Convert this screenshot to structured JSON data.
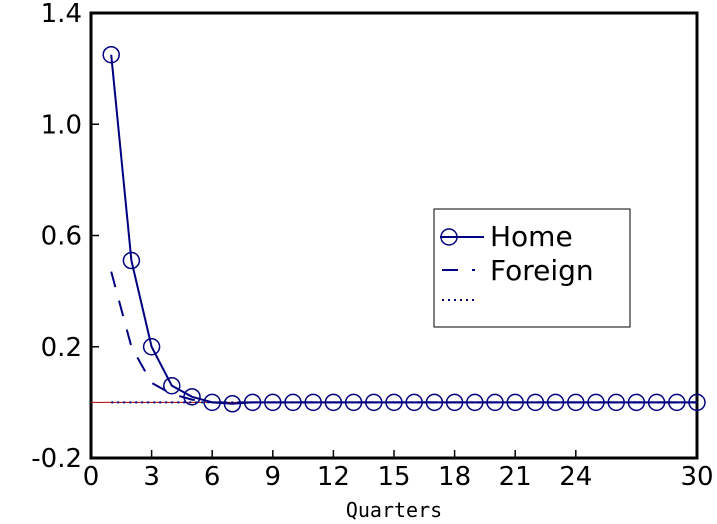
{
  "chart_data": {
    "type": "line",
    "xlabel": "Quarters",
    "ylabel": "",
    "xlim": [
      0,
      30
    ],
    "ylim": [
      -0.2,
      1.4
    ],
    "x_ticks": [
      0,
      3,
      6,
      9,
      12,
      15,
      18,
      21,
      24,
      30
    ],
    "y_ticks": [
      -0.2,
      0.2,
      0.6,
      1.0,
      1.4
    ],
    "y_tick_labels": [
      "-0.2",
      "0.2",
      "0.6",
      "1.0",
      "1.4"
    ],
    "grid": false,
    "legend_position": "center-right",
    "zero_line": true,
    "series": [
      {
        "name": "Home",
        "style": "solid-circles",
        "color": "#000080",
        "x": [
          1,
          2,
          3,
          4,
          5,
          6,
          7,
          8,
          9,
          10,
          11,
          12,
          13,
          14,
          15,
          16,
          17,
          18,
          19,
          20,
          21,
          22,
          23,
          24,
          25,
          26,
          27,
          28,
          29,
          30
        ],
        "values": [
          1.25,
          0.51,
          0.2,
          0.06,
          0.02,
          0.0,
          -0.005,
          0.0,
          0.0,
          0.0,
          0.0,
          0.0,
          0.0,
          0.0,
          0.0,
          0.0,
          0.0,
          0.0,
          0.0,
          0.0,
          0.0,
          0.0,
          0.0,
          0.0,
          0.0,
          0.0,
          0.0,
          0.0,
          0.0,
          0.0
        ]
      },
      {
        "name": "Foreign",
        "style": "dashed",
        "color": "#000080",
        "x": [
          1,
          2,
          3,
          4,
          5,
          6,
          7,
          8,
          9,
          10,
          11,
          12,
          13,
          14,
          15,
          16,
          17,
          18,
          19,
          20,
          21,
          22,
          23,
          24,
          25,
          26,
          27,
          28,
          29,
          30
        ],
        "values": [
          0.47,
          0.2,
          0.07,
          0.03,
          0.01,
          0.0,
          0.0,
          0.0,
          0.0,
          0.0,
          0.0,
          0.0,
          0.0,
          0.0,
          0.0,
          0.0,
          0.0,
          0.0,
          0.0,
          0.0,
          0.0,
          0.0,
          0.0,
          0.0,
          0.0,
          0.0,
          0.0,
          0.0,
          0.0,
          0.0
        ]
      },
      {
        "name": "",
        "style": "dotted",
        "color": "#000080",
        "x": [
          1,
          2,
          3,
          4,
          5,
          6,
          7,
          8,
          9,
          10,
          11,
          12,
          13,
          14,
          15,
          16,
          17,
          18,
          19,
          20,
          21,
          22,
          23,
          24,
          25,
          26,
          27,
          28,
          29,
          30
        ],
        "values": [
          0.0,
          0.0,
          0.0,
          0.0,
          0.0,
          0.0,
          0.0,
          0.0,
          0.0,
          0.0,
          0.0,
          0.0,
          0.0,
          0.0,
          0.0,
          0.0,
          0.0,
          0.0,
          0.0,
          0.0,
          0.0,
          0.0,
          0.0,
          0.0,
          0.0,
          0.0,
          0.0,
          0.0,
          0.0,
          0.0
        ]
      }
    ]
  }
}
